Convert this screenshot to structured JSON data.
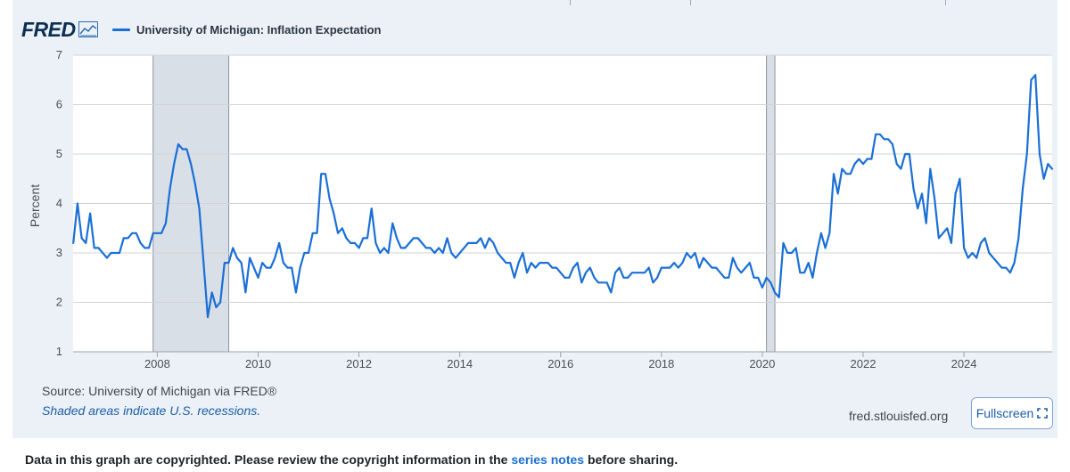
{
  "brand": {
    "logo_text": "FRED",
    "logo_icon": "chart-line-icon"
  },
  "legend": {
    "series_label": "University of Michigan: Inflation Expectation",
    "series_color": "#1a6fd6"
  },
  "footer": {
    "source": "Source: University of Michigan via FRED®",
    "shaded_note": "Shaded areas indicate U.S. recessions.",
    "site": "fred.stlouisfed.org",
    "fullscreen_label": "Fullscreen",
    "fullscreen_icon": "expand-icon"
  },
  "copyright": {
    "prefix": "Data in this graph are copyrighted. Please review the copyright information in the",
    "link": "series notes",
    "suffix": "before sharing."
  },
  "colors": {
    "panel": "#ecf1f7",
    "line": "#1a6fd6",
    "recession": "#d9dfe7",
    "link": "#1b6fcf"
  },
  "chart_data": {
    "type": "line",
    "title": "University of Michigan: Inflation Expectation",
    "xlabel": "",
    "ylabel": "Percent",
    "xlim": [
      2006.33,
      2025.75
    ],
    "ylim": [
      1,
      7
    ],
    "yticks": [
      1,
      2,
      3,
      4,
      5,
      6,
      7
    ],
    "xticks": [
      2008,
      2010,
      2012,
      2014,
      2016,
      2018,
      2020,
      2022,
      2024
    ],
    "recessions": [
      [
        2007.917,
        2009.417
      ],
      [
        2020.083,
        2020.25
      ]
    ],
    "series": [
      {
        "name": "University of Michigan: Inflation Expectation",
        "x": [
          2006.333,
          2006.417,
          2006.5,
          2006.583,
          2006.667,
          2006.75,
          2006.833,
          2006.917,
          2007.0,
          2007.083,
          2007.167,
          2007.25,
          2007.333,
          2007.417,
          2007.5,
          2007.583,
          2007.667,
          2007.75,
          2007.833,
          2007.917,
          2008.0,
          2008.083,
          2008.167,
          2008.25,
          2008.333,
          2008.417,
          2008.5,
          2008.583,
          2008.667,
          2008.75,
          2008.833,
          2008.917,
          2009.0,
          2009.083,
          2009.167,
          2009.25,
          2009.333,
          2009.417,
          2009.5,
          2009.583,
          2009.667,
          2009.75,
          2009.833,
          2009.917,
          2010.0,
          2010.083,
          2010.167,
          2010.25,
          2010.333,
          2010.417,
          2010.5,
          2010.583,
          2010.667,
          2010.75,
          2010.833,
          2010.917,
          2011.0,
          2011.083,
          2011.167,
          2011.25,
          2011.333,
          2011.417,
          2011.5,
          2011.583,
          2011.667,
          2011.75,
          2011.833,
          2011.917,
          2012.0,
          2012.083,
          2012.167,
          2012.25,
          2012.333,
          2012.417,
          2012.5,
          2012.583,
          2012.667,
          2012.75,
          2012.833,
          2012.917,
          2013.0,
          2013.083,
          2013.167,
          2013.25,
          2013.333,
          2013.417,
          2013.5,
          2013.583,
          2013.667,
          2013.75,
          2013.833,
          2013.917,
          2014.0,
          2014.083,
          2014.167,
          2014.25,
          2014.333,
          2014.417,
          2014.5,
          2014.583,
          2014.667,
          2014.75,
          2014.833,
          2014.917,
          2015.0,
          2015.083,
          2015.167,
          2015.25,
          2015.333,
          2015.417,
          2015.5,
          2015.583,
          2015.667,
          2015.75,
          2015.833,
          2015.917,
          2016.0,
          2016.083,
          2016.167,
          2016.25,
          2016.333,
          2016.417,
          2016.5,
          2016.583,
          2016.667,
          2016.75,
          2016.833,
          2016.917,
          2017.0,
          2017.083,
          2017.167,
          2017.25,
          2017.333,
          2017.417,
          2017.5,
          2017.583,
          2017.667,
          2017.75,
          2017.833,
          2017.917,
          2018.0,
          2018.083,
          2018.167,
          2018.25,
          2018.333,
          2018.417,
          2018.5,
          2018.583,
          2018.667,
          2018.75,
          2018.833,
          2018.917,
          2019.0,
          2019.083,
          2019.167,
          2019.25,
          2019.333,
          2019.417,
          2019.5,
          2019.583,
          2019.667,
          2019.75,
          2019.833,
          2019.917,
          2020.0,
          2020.083,
          2020.167,
          2020.25,
          2020.333,
          2020.417,
          2020.5,
          2020.583,
          2020.667,
          2020.75,
          2020.833,
          2020.917,
          2021.0,
          2021.083,
          2021.167,
          2021.25,
          2021.333,
          2021.417,
          2021.5,
          2021.583,
          2021.667,
          2021.75,
          2021.833,
          2021.917,
          2022.0,
          2022.083,
          2022.167,
          2022.25,
          2022.333,
          2022.417,
          2022.5,
          2022.583,
          2022.667,
          2022.75,
          2022.833,
          2022.917,
          2023.0,
          2023.083,
          2023.167,
          2023.25,
          2023.333,
          2023.417,
          2023.5,
          2023.583,
          2023.667,
          2023.75,
          2023.833,
          2023.917,
          2024.0,
          2024.083,
          2024.167,
          2024.25,
          2024.333,
          2024.417,
          2024.5,
          2024.583,
          2024.667,
          2024.75,
          2024.833,
          2024.917,
          2025.0,
          2025.083,
          2025.167,
          2025.25,
          2025.333,
          2025.417,
          2025.5,
          2025.583,
          2025.667,
          2025.75
        ],
        "y": [
          3.2,
          4.0,
          3.3,
          3.2,
          3.8,
          3.1,
          3.1,
          3.0,
          2.9,
          3.0,
          3.0,
          3.0,
          3.3,
          3.3,
          3.4,
          3.4,
          3.2,
          3.1,
          3.1,
          3.4,
          3.4,
          3.4,
          3.6,
          4.3,
          4.8,
          5.2,
          5.1,
          5.1,
          4.8,
          4.4,
          3.9,
          2.8,
          1.7,
          2.2,
          1.9,
          2.0,
          2.8,
          2.8,
          3.1,
          2.9,
          2.8,
          2.2,
          2.9,
          2.7,
          2.5,
          2.8,
          2.7,
          2.7,
          2.9,
          3.2,
          2.8,
          2.7,
          2.7,
          2.2,
          2.7,
          3.0,
          3.0,
          3.4,
          3.4,
          4.6,
          4.6,
          4.1,
          3.8,
          3.4,
          3.5,
          3.3,
          3.2,
          3.2,
          3.1,
          3.3,
          3.3,
          3.9,
          3.2,
          3.0,
          3.1,
          3.0,
          3.6,
          3.3,
          3.1,
          3.1,
          3.2,
          3.3,
          3.3,
          3.2,
          3.1,
          3.1,
          3.0,
          3.1,
          3.0,
          3.3,
          3.0,
          2.9,
          3.0,
          3.1,
          3.2,
          3.2,
          3.2,
          3.3,
          3.1,
          3.3,
          3.2,
          3.0,
          2.9,
          2.8,
          2.8,
          2.5,
          2.8,
          3.0,
          2.6,
          2.8,
          2.7,
          2.8,
          2.8,
          2.8,
          2.7,
          2.7,
          2.6,
          2.5,
          2.5,
          2.7,
          2.8,
          2.4,
          2.6,
          2.7,
          2.5,
          2.4,
          2.4,
          2.4,
          2.2,
          2.6,
          2.7,
          2.5,
          2.5,
          2.6,
          2.6,
          2.6,
          2.6,
          2.7,
          2.4,
          2.5,
          2.7,
          2.7,
          2.7,
          2.8,
          2.7,
          2.8,
          3.0,
          2.9,
          3.0,
          2.7,
          2.9,
          2.8,
          2.7,
          2.7,
          2.6,
          2.5,
          2.5,
          2.9,
          2.7,
          2.6,
          2.7,
          2.8,
          2.5,
          2.5,
          2.3,
          2.5,
          2.4,
          2.2,
          2.1,
          3.2,
          3.0,
          3.0,
          3.1,
          2.6,
          2.6,
          2.8,
          2.5,
          3.0,
          3.4,
          3.1,
          3.4,
          4.6,
          4.2,
          4.7,
          4.6,
          4.6,
          4.8,
          4.9,
          4.8,
          4.9,
          4.9,
          5.4,
          5.4,
          5.3,
          5.3,
          5.2,
          4.8,
          4.7,
          5.0,
          5.0,
          4.3,
          3.9,
          4.2,
          3.6,
          4.7,
          4.1,
          3.3,
          3.4,
          3.5,
          3.2,
          4.2,
          4.5,
          3.1,
          2.9,
          3.0,
          2.9,
          3.2,
          3.3,
          3.0,
          2.9,
          2.8,
          2.7,
          2.7,
          2.6,
          2.8,
          3.3,
          4.3,
          5.0,
          6.5,
          6.6,
          5.0,
          4.5,
          4.8,
          4.7
        ]
      }
    ]
  }
}
